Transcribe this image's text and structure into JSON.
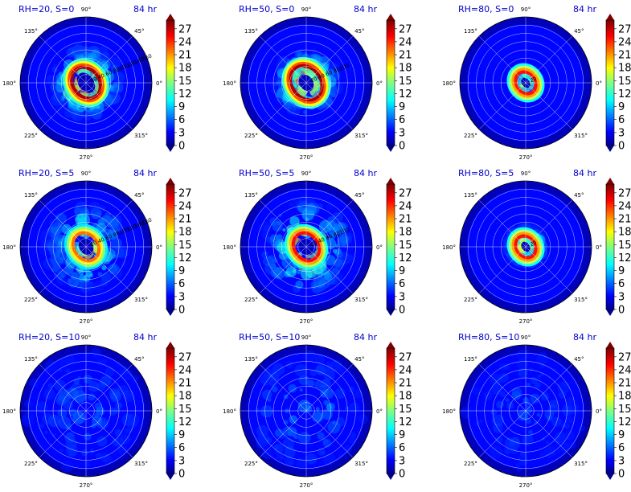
{
  "chart_data": {
    "type": "heatmap",
    "layout": "3x3 grid of polar plots with colorbars",
    "colorbar": {
      "ticks": [
        "0",
        "3",
        "6",
        "9",
        "12",
        "15",
        "18",
        "21",
        "24",
        "27"
      ],
      "colormap": "jet",
      "extend": "both"
    },
    "theta_labels": [
      "90°",
      "45°",
      "0°",
      "315°",
      "270°",
      "225°",
      "180°",
      "135°"
    ],
    "panels": [
      {
        "title": "RH=20, S=0",
        "time": "84 hr",
        "radial_labels": [
          "20",
          "40",
          "60",
          "80",
          "100",
          "120",
          "140",
          "160"
        ],
        "pattern": "ring",
        "core_radius": 0.12,
        "ring_radius": 0.2,
        "peak_value": 27,
        "spread": 0.55
      },
      {
        "title": "RH=50, S=0",
        "time": "84 hr",
        "radial_labels": [
          "20",
          "40",
          "60",
          "80",
          "100"
        ],
        "pattern": "ring",
        "core_radius": 0.1,
        "ring_radius": 0.22,
        "peak_value": 27,
        "spread": 0.5
      },
      {
        "title": "RH=80, S=0",
        "time": "84 hr",
        "radial_labels": [
          "20"
        ],
        "pattern": "ring",
        "core_radius": 0.06,
        "ring_radius": 0.14,
        "peak_value": 24,
        "spread": 0.22
      },
      {
        "title": "RH=20, S=5",
        "time": "84 hr",
        "radial_labels": [
          "20",
          "40",
          "60",
          "80",
          "100",
          "120",
          "140",
          "160"
        ],
        "pattern": "spiral",
        "core_radius": 0.1,
        "ring_radius": 0.18,
        "peak_value": 21,
        "spread": 0.65
      },
      {
        "title": "RH=50, S=5",
        "time": "84 hr",
        "radial_labels": [
          "20",
          "40",
          "60",
          "80",
          "100"
        ],
        "pattern": "spiral",
        "core_radius": 0.1,
        "ring_radius": 0.18,
        "peak_value": 24,
        "spread": 0.7
      },
      {
        "title": "RH=80, S=5",
        "time": "84 hr",
        "radial_labels": [
          "20"
        ],
        "pattern": "ring",
        "core_radius": 0.06,
        "ring_radius": 0.14,
        "peak_value": 24,
        "spread": 0.3
      },
      {
        "title": "RH=20, S=10",
        "time": "84 hr",
        "radial_labels": [],
        "pattern": "weak",
        "core_radius": 0,
        "ring_radius": 0,
        "peak_value": 5,
        "spread": 0.9
      },
      {
        "title": "RH=50, S=10",
        "time": "84 hr",
        "radial_labels": [],
        "pattern": "weak",
        "core_radius": 0,
        "ring_radius": 0,
        "peak_value": 8,
        "spread": 0.9
      },
      {
        "title": "RH=80, S=10",
        "time": "84 hr",
        "radial_labels": [],
        "pattern": "weak",
        "core_radius": 0,
        "ring_radius": 0,
        "peak_value": 4,
        "spread": 0.9
      }
    ]
  }
}
